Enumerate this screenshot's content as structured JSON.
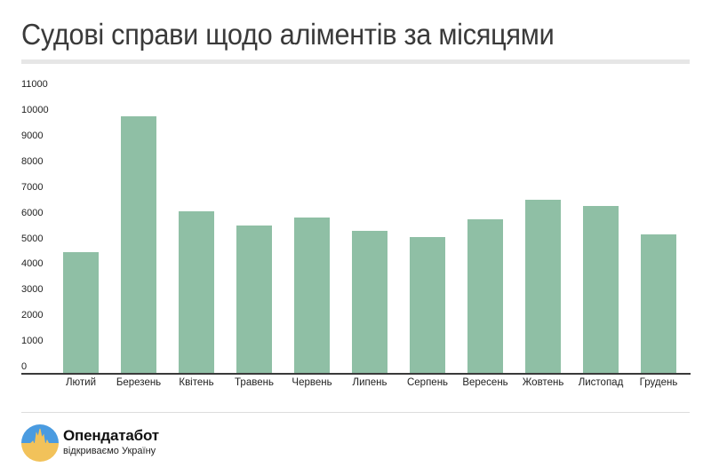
{
  "header": {
    "title": "Судові справи щодо аліментів за місяцями"
  },
  "chart_data": {
    "type": "bar",
    "title": "Судові справи щодо аліментів за місяцями",
    "xlabel": "",
    "ylabel": "",
    "categories": [
      "Лютий",
      "Березень",
      "Квітень",
      "Травень",
      "Червень",
      "Липень",
      "Серпень",
      "Вересень",
      "Жовтень",
      "Листопад",
      "Грудень"
    ],
    "values": [
      4700,
      10000,
      6300,
      5750,
      6050,
      5550,
      5300,
      6000,
      6750,
      6500,
      5400
    ],
    "ylim": [
      0,
      11000
    ],
    "yticks": [
      "0",
      "1000",
      "2000",
      "3000",
      "4000",
      "5000",
      "6000",
      "7000",
      "8000",
      "9000",
      "10000",
      "11000"
    ],
    "grid": false,
    "legend": "none",
    "bar_color": "#8fbfa5"
  },
  "footer": {
    "brand_name": "Опендатабот",
    "brand_tagline": "відкриваємо Україну",
    "logo_colors": {
      "top": "#4a9be0",
      "bottom": "#f2c25a"
    }
  }
}
